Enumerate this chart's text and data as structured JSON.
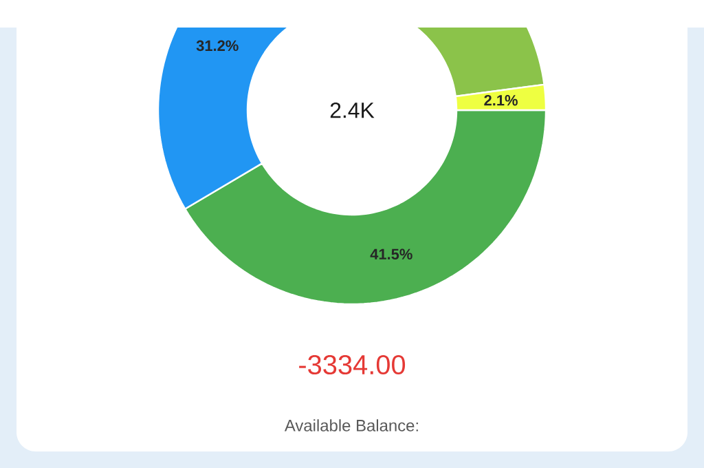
{
  "chart_data": {
    "type": "donut",
    "categories": [
      null,
      null,
      null,
      null
    ],
    "values": [
      41.5,
      31.2,
      25.2,
      2.1
    ],
    "colors": [
      "#4caf50",
      "#2196f3",
      "#8bc34a",
      "#eeff41"
    ],
    "value_labels": [
      "41.5%",
      "31.2%",
      null,
      "2.1%"
    ],
    "annotations": [
      "2.4K",
      "-3334.00",
      "Available Balance:"
    ]
  }
}
